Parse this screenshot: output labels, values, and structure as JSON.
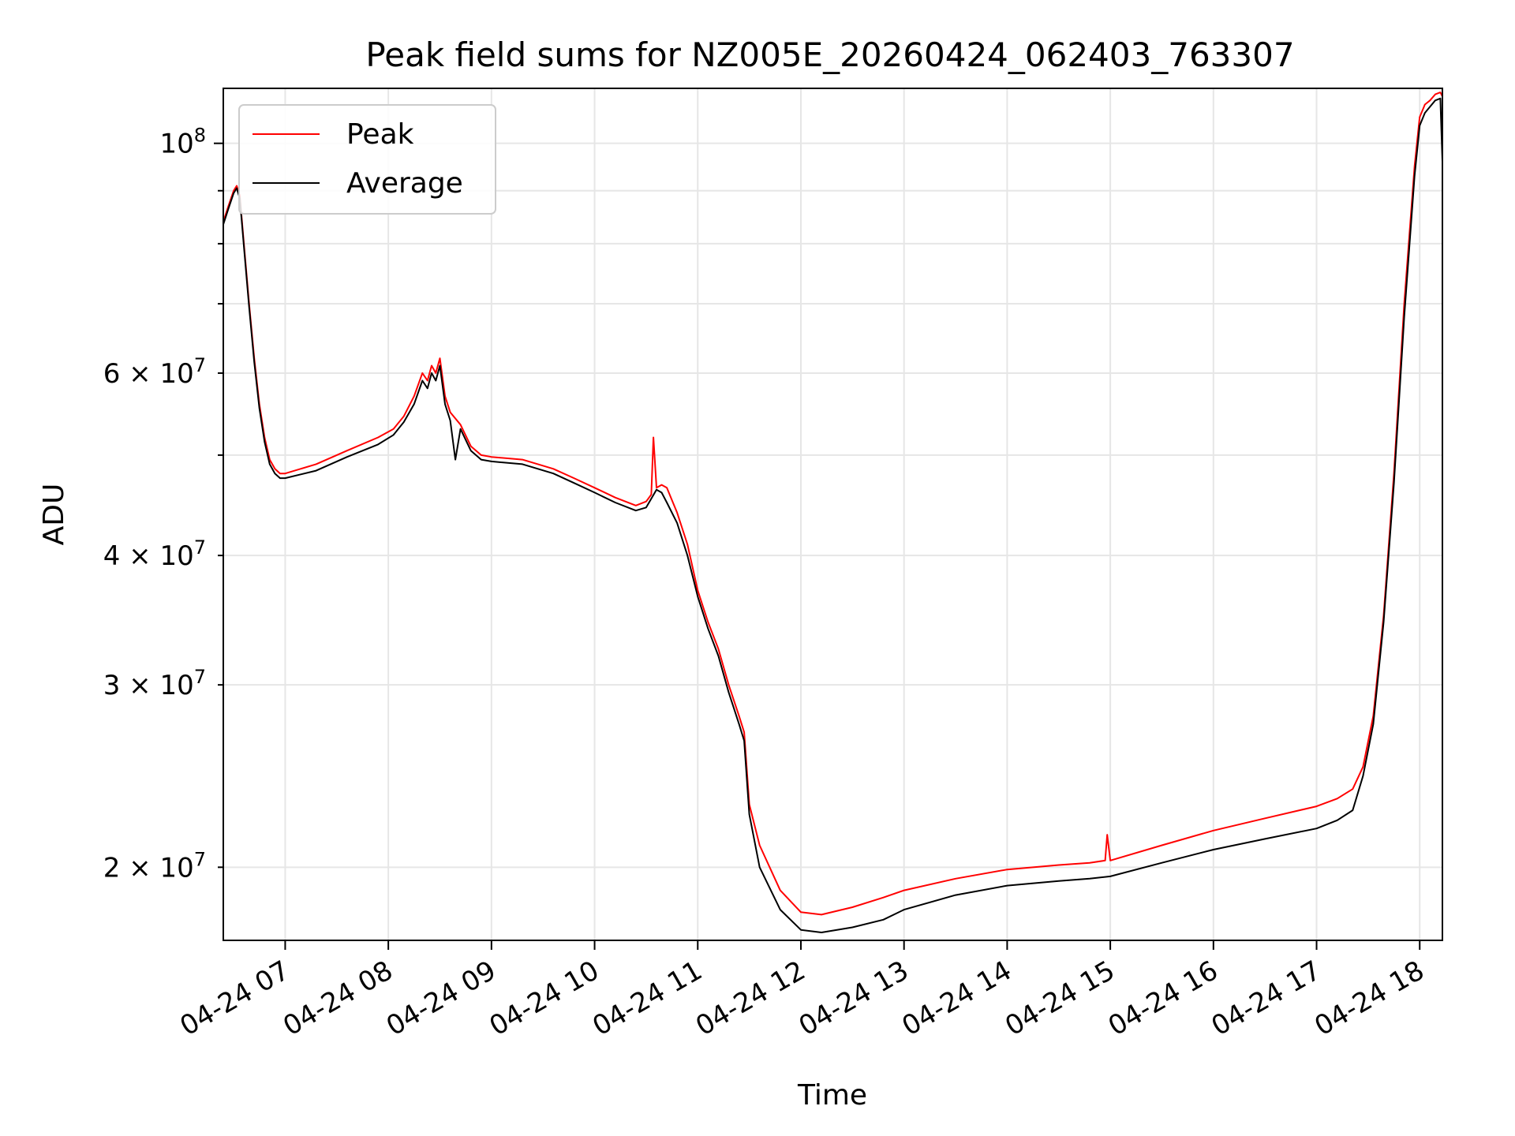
{
  "chart_data": {
    "type": "line",
    "title": "Peak field sums for NZ005E_20260424_062403_763307",
    "xlabel": "Time",
    "ylabel": "ADU",
    "yscale": "log",
    "grid": true,
    "legend": "upper left",
    "xlim": [
      6.4,
      18.22
    ],
    "ylim": [
      17000000,
      113000000
    ],
    "x_ticks": [
      {
        "v": 7,
        "label": "04-24 07"
      },
      {
        "v": 8,
        "label": "04-24 08"
      },
      {
        "v": 9,
        "label": "04-24 09"
      },
      {
        "v": 10,
        "label": "04-24 10"
      },
      {
        "v": 11,
        "label": "04-24 11"
      },
      {
        "v": 12,
        "label": "04-24 12"
      },
      {
        "v": 13,
        "label": "04-24 13"
      },
      {
        "v": 14,
        "label": "04-24 14"
      },
      {
        "v": 15,
        "label": "04-24 15"
      },
      {
        "v": 16,
        "label": "04-24 16"
      },
      {
        "v": 17,
        "label": "04-24 17"
      },
      {
        "v": 18,
        "label": "04-24 18"
      }
    ],
    "y_ticks_major": [
      {
        "v": 100000000,
        "base": "10",
        "exp": "8"
      }
    ],
    "y_ticks_minor": [
      {
        "v": 20000000,
        "mant": "2",
        "base": "10",
        "exp": "7"
      },
      {
        "v": 30000000,
        "mant": "3",
        "base": "10",
        "exp": "7"
      },
      {
        "v": 40000000,
        "mant": "4",
        "base": "10",
        "exp": "7"
      },
      {
        "v": 60000000,
        "mant": "6",
        "base": "10",
        "exp": "7"
      }
    ],
    "y_grid_unlabeled": [
      50000000,
      70000000,
      80000000,
      90000000
    ],
    "times_of_day": "2026-04-24",
    "x_units": "hour of day",
    "series": [
      {
        "name": "Peak",
        "color": "#ff0000",
        "x": [
          6.4,
          6.45,
          6.5,
          6.53,
          6.56,
          6.6,
          6.65,
          6.7,
          6.75,
          6.8,
          6.85,
          6.9,
          6.95,
          7.0,
          7.3,
          7.6,
          7.9,
          8.05,
          8.15,
          8.25,
          8.33,
          8.38,
          8.42,
          8.46,
          8.5,
          8.55,
          8.6,
          8.7,
          8.8,
          8.9,
          9.0,
          9.3,
          9.6,
          9.8,
          10.0,
          10.2,
          10.4,
          10.5,
          10.55,
          10.57,
          10.6,
          10.65,
          10.7,
          10.8,
          10.9,
          11.0,
          11.1,
          11.2,
          11.3,
          11.4,
          11.45,
          11.5,
          11.6,
          11.8,
          12.0,
          12.2,
          12.5,
          12.8,
          13.0,
          13.5,
          14.0,
          14.5,
          14.8,
          14.95,
          14.97,
          15.0,
          15.5,
          16.0,
          16.5,
          17.0,
          17.2,
          17.35,
          17.45,
          17.55,
          17.65,
          17.75,
          17.85,
          17.95,
          18.0,
          18.05,
          18.1,
          18.15,
          18.2,
          18.22
        ],
        "y": [
          84000000,
          87000000,
          90000000,
          91000000,
          89000000,
          80000000,
          70000000,
          62000000,
          56000000,
          52000000,
          49500000,
          48500000,
          48000000,
          48000000,
          49000000,
          50500000,
          52000000,
          53000000,
          54500000,
          57000000,
          60000000,
          59000000,
          61000000,
          60000000,
          62000000,
          57000000,
          55000000,
          53500000,
          51000000,
          50000000,
          49800000,
          49500000,
          48500000,
          47500000,
          46500000,
          45500000,
          44700000,
          45100000,
          45800000,
          52000000,
          46500000,
          46800000,
          46500000,
          44000000,
          41000000,
          37000000,
          34500000,
          32500000,
          30000000,
          28000000,
          27000000,
          23000000,
          21000000,
          19000000,
          18100000,
          18000000,
          18300000,
          18700000,
          19000000,
          19500000,
          19900000,
          20100000,
          20200000,
          20300000,
          21500000,
          20300000,
          21000000,
          21700000,
          22300000,
          22900000,
          23300000,
          23800000,
          25000000,
          28000000,
          35000000,
          48000000,
          70000000,
          95000000,
          106000000,
          109000000,
          110000000,
          111500000,
          112000000,
          111000000
        ]
      },
      {
        "name": "Average",
        "color": "#000000",
        "x": [
          6.4,
          6.45,
          6.5,
          6.53,
          6.56,
          6.6,
          6.65,
          6.7,
          6.75,
          6.8,
          6.85,
          6.9,
          6.95,
          7.0,
          7.3,
          7.6,
          7.9,
          8.05,
          8.15,
          8.25,
          8.33,
          8.38,
          8.42,
          8.46,
          8.5,
          8.55,
          8.6,
          8.65,
          8.7,
          8.8,
          8.9,
          9.0,
          9.3,
          9.6,
          9.8,
          10.0,
          10.2,
          10.4,
          10.5,
          10.6,
          10.65,
          10.7,
          10.8,
          10.9,
          11.0,
          11.1,
          11.2,
          11.3,
          11.4,
          11.45,
          11.5,
          11.6,
          11.8,
          12.0,
          12.2,
          12.5,
          12.8,
          13.0,
          13.5,
          14.0,
          14.5,
          14.8,
          15.0,
          15.5,
          16.0,
          16.5,
          17.0,
          17.2,
          17.35,
          17.45,
          17.55,
          17.65,
          17.75,
          17.85,
          17.95,
          18.0,
          18.05,
          18.1,
          18.15,
          18.2,
          18.22
        ],
        "y": [
          83500000,
          86500000,
          89500000,
          90500000,
          88500000,
          79500000,
          69500000,
          61500000,
          55500000,
          51500000,
          49000000,
          48000000,
          47500000,
          47500000,
          48300000,
          49800000,
          51200000,
          52300000,
          53800000,
          56000000,
          59000000,
          58000000,
          60000000,
          59000000,
          61000000,
          56000000,
          54000000,
          49500000,
          53000000,
          50500000,
          49500000,
          49300000,
          49000000,
          48000000,
          47000000,
          46000000,
          45000000,
          44200000,
          44500000,
          46300000,
          46000000,
          45000000,
          43000000,
          40000000,
          36500000,
          34000000,
          32000000,
          29500000,
          27500000,
          26500000,
          22500000,
          20000000,
          18200000,
          17400000,
          17300000,
          17500000,
          17800000,
          18200000,
          18800000,
          19200000,
          19400000,
          19500000,
          19600000,
          20200000,
          20800000,
          21300000,
          21800000,
          22200000,
          22700000,
          24500000,
          27500000,
          34500000,
          47000000,
          68000000,
          93000000,
          104000000,
          107000000,
          108500000,
          110000000,
          110500000,
          96000000
        ]
      }
    ]
  }
}
